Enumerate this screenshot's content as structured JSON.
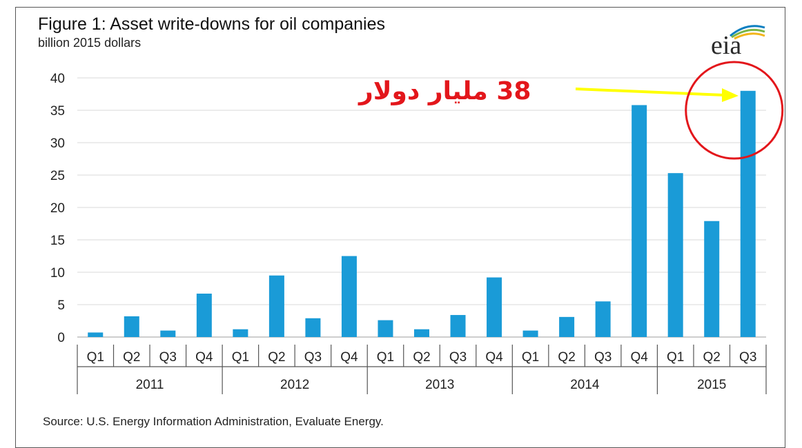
{
  "header": {
    "title": "Figure 1:  Asset write-downs for oil companies",
    "subtitle": "billion 2015 dollars",
    "logo": "eia"
  },
  "annotation": {
    "text": "38 مليار دولار",
    "arrow_color": "#ffff00",
    "circle_color": "#e3161b"
  },
  "footer": {
    "source": "Source:  U.S. Energy Information Administration, Evaluate Energy."
  },
  "colors": {
    "bar": "#1a9bd7",
    "grid": "#d9d9d9",
    "axis": "#555555"
  },
  "chart_data": {
    "type": "bar",
    "title": "Figure 1:  Asset write-downs for oil companies",
    "ylabel": "billion 2015 dollars",
    "xlabel": "",
    "ylim": [
      0,
      40
    ],
    "yticks": [
      0,
      5,
      10,
      15,
      20,
      25,
      30,
      35,
      40
    ],
    "grid": true,
    "categories": [
      "Q1",
      "Q2",
      "Q3",
      "Q4",
      "Q1",
      "Q2",
      "Q3",
      "Q4",
      "Q1",
      "Q2",
      "Q3",
      "Q4",
      "Q1",
      "Q2",
      "Q3",
      "Q4",
      "Q1",
      "Q2",
      "Q3"
    ],
    "groups": [
      {
        "label": "2011",
        "count": 4
      },
      {
        "label": "2012",
        "count": 4
      },
      {
        "label": "2013",
        "count": 4
      },
      {
        "label": "2014",
        "count": 4
      },
      {
        "label": "2015",
        "count": 3
      }
    ],
    "values": [
      0.7,
      3.2,
      1.0,
      6.7,
      1.2,
      9.5,
      2.9,
      12.5,
      2.6,
      1.2,
      3.4,
      9.2,
      1.0,
      3.1,
      5.5,
      35.8,
      25.3,
      17.9,
      38.0
    ]
  }
}
